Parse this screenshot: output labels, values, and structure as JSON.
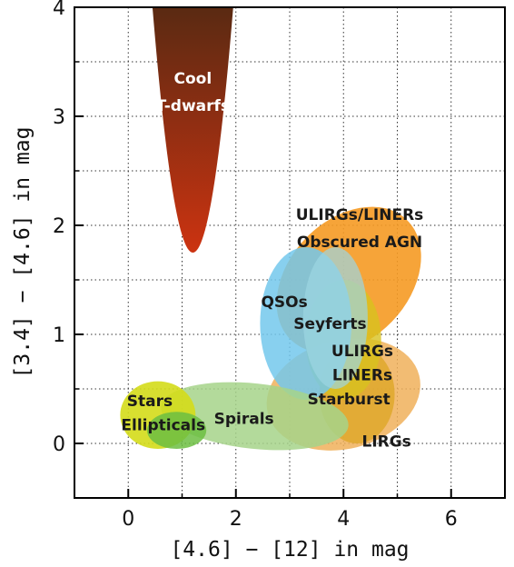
{
  "chart_data": {
    "type": "scatter",
    "title": "",
    "xlabel": "[4.6] − [12] in mag",
    "ylabel": "[3.4] − [4.6] in mag",
    "xlim": [
      -1,
      7
    ],
    "ylim": [
      -0.5,
      4
    ],
    "xticks": [
      0,
      2,
      4,
      6
    ],
    "yticks": [
      0,
      1,
      2,
      3,
      4
    ],
    "grid": true,
    "regions": [
      {
        "name": "Cool T-dwarfs",
        "shape": "parabola",
        "vertex": [
          1.2,
          1.75
        ],
        "half_width_at_top": 0.75,
        "top": 4.0,
        "color_top": "#5a2a12",
        "color_bottom": "#cc3311",
        "opacity": 1.0
      },
      {
        "name": "ULIRGs/LINERs Obscured AGN",
        "shape": "ellipse",
        "center": [
          4.1,
          1.5
        ],
        "rx": 1.55,
        "ry": 0.55,
        "angle": -46,
        "color": "#f59a23",
        "opacity": 0.9
      },
      {
        "name": "LIRGs",
        "shape": "ellipse",
        "center": [
          4.0,
          0.45
        ],
        "rx": 1.45,
        "ry": 0.5,
        "angle": -14,
        "color": "#f0b05a",
        "opacity": 0.85
      },
      {
        "name": "Starburst",
        "shape": "ellipse",
        "center": [
          4.25,
          0.45
        ],
        "rx": 0.7,
        "ry": 0.45,
        "angle": 0,
        "color": "#e0a830",
        "opacity": 0.9
      },
      {
        "name": "ULIRGs LINERs",
        "shape": "ellipse",
        "center": [
          4.0,
          0.95
        ],
        "rx": 0.7,
        "ry": 0.55,
        "angle": 0,
        "color": "#d8c21e",
        "opacity": 0.8
      },
      {
        "name": "QSOs",
        "shape": "ellipse",
        "center": [
          3.3,
          1.1
        ],
        "rx": 0.85,
        "ry": 0.7,
        "angle": 0,
        "color": "#73c8ec",
        "opacity": 0.85
      },
      {
        "name": "Seyferts",
        "shape": "ellipse",
        "center": [
          3.85,
          1.15
        ],
        "rx": 0.6,
        "ry": 0.65,
        "angle": 0,
        "color": "#9cd6e2",
        "opacity": 0.7
      },
      {
        "name": "Spirals",
        "shape": "ellipse",
        "center": [
          2.35,
          0.25
        ],
        "rx": 1.75,
        "ry": 0.3,
        "angle": 6,
        "color": "#a6d48a",
        "opacity": 0.85
      },
      {
        "name": "Stars",
        "shape": "ellipse",
        "center": [
          0.55,
          0.26
        ],
        "rx": 0.7,
        "ry": 0.31,
        "angle": 0,
        "color": "#d4dc1a",
        "opacity": 0.9
      },
      {
        "name": "Ellipticals",
        "shape": "ellipse",
        "center": [
          0.9,
          0.12
        ],
        "rx": 0.55,
        "ry": 0.17,
        "angle": 0,
        "color": "#6cbe42",
        "opacity": 0.85
      }
    ],
    "labels": [
      {
        "text": "Cool",
        "x": 1.2,
        "y": 3.3,
        "color": "#ffffff"
      },
      {
        "text": "T-dwarfs",
        "x": 1.2,
        "y": 3.05,
        "color": "#ffffff"
      },
      {
        "text": "ULIRGs/LINERs",
        "x": 4.3,
        "y": 2.05,
        "color": "#1a1a1a"
      },
      {
        "text": "Obscured AGN",
        "x": 4.3,
        "y": 1.8,
        "color": "#1a1a1a"
      },
      {
        "text": "QSOs",
        "x": 2.9,
        "y": 1.25,
        "color": "#1a1a1a"
      },
      {
        "text": "Seyferts",
        "x": 3.75,
        "y": 1.05,
        "color": "#1a1a1a"
      },
      {
        "text": "ULIRGs",
        "x": 4.35,
        "y": 0.8,
        "color": "#1a1a1a"
      },
      {
        "text": "LINERs",
        "x": 4.35,
        "y": 0.58,
        "color": "#1a1a1a"
      },
      {
        "text": "Starburst",
        "x": 4.1,
        "y": 0.36,
        "color": "#1a1a1a"
      },
      {
        "text": "LIRGs",
        "x": 4.8,
        "y": -0.03,
        "color": "#1a1a1a"
      },
      {
        "text": "Stars",
        "x": 0.4,
        "y": 0.34,
        "color": "#1a1a1a"
      },
      {
        "text": "Ellipticals",
        "x": 0.65,
        "y": 0.12,
        "color": "#1a1a1a"
      },
      {
        "text": "Spirals",
        "x": 2.15,
        "y": 0.18,
        "color": "#1a1a1a"
      }
    ]
  }
}
